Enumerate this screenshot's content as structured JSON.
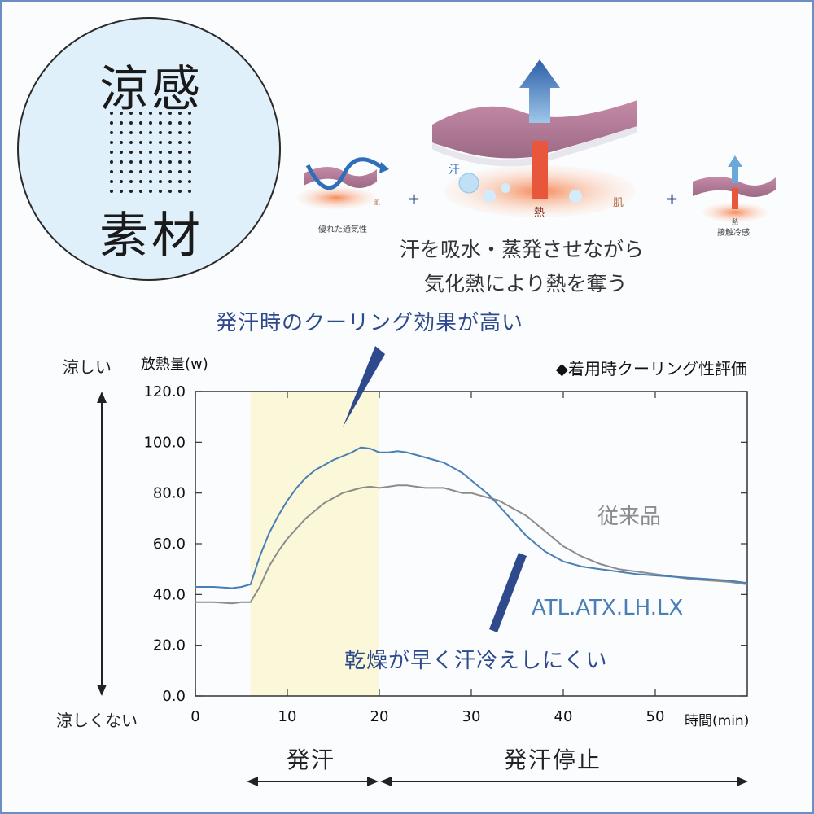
{
  "badge": {
    "line1": "涼感",
    "line2": "素材"
  },
  "illustration": {
    "left_caption": "優れた通気性",
    "center_sweat_label": "汗",
    "center_heat_label": "熱",
    "center_skin_label": "肌",
    "right_caption": "接触冷感",
    "right_heat_label": "熱",
    "left_skin_label": "肌"
  },
  "mechanism_text": {
    "line1": "汗を吸水・蒸発させながら",
    "line2": "気化熱により熱を奪う"
  },
  "highlight_note": "発汗時のクーリング効果が高い",
  "dry_note": "乾燥が早く汗冷えしにくい",
  "side_labels": {
    "top": "涼しい",
    "bottom": "涼しくない"
  },
  "phases": {
    "sweat": "発汗",
    "stop": "発汗停止"
  },
  "colors": {
    "new_product": "#4a7fb5",
    "conventional": "#8c8c8c",
    "shade": "#fbf8d9",
    "arrow_blue": "#2e4a8c"
  },
  "chart_data": {
    "type": "line",
    "title": "◆着用時クーリング性評価",
    "ylabel": "放熱量(w)",
    "xlabel": "時間(min)",
    "xlim": [
      0,
      60
    ],
    "ylim": [
      0,
      120
    ],
    "x_ticks": [
      0,
      10,
      20,
      30,
      40,
      50
    ],
    "y_ticks": [
      "0.0",
      "20.0",
      "40.0",
      "60.0",
      "80.0",
      "100.0",
      "120.0"
    ],
    "grid": false,
    "shaded_interval": [
      6,
      20
    ],
    "series": [
      {
        "name": "ATL.ATX.LH.LX",
        "x": [
          0,
          2,
          4,
          5,
          6,
          7,
          8,
          9,
          10,
          11,
          12,
          13,
          14,
          15,
          16,
          17,
          18,
          19,
          20,
          21,
          22,
          23,
          24,
          25,
          26,
          27,
          28,
          29,
          30,
          31,
          32,
          33,
          34,
          35,
          36,
          37,
          38,
          39,
          40,
          42,
          44,
          46,
          48,
          50,
          52,
          54,
          56,
          58,
          60
        ],
        "y": [
          43,
          43,
          42.5,
          43,
          44,
          55,
          64,
          71,
          77,
          82,
          86,
          89,
          91,
          93,
          94.5,
          96,
          98,
          97.5,
          96,
          96,
          96.5,
          96,
          95,
          94,
          93,
          92,
          90,
          88,
          85,
          82,
          79,
          75,
          71,
          67,
          63,
          60,
          57,
          55,
          53,
          51,
          50,
          49,
          48,
          47.5,
          47,
          46.5,
          46,
          45.5,
          44.5
        ]
      },
      {
        "name": "従来品",
        "x": [
          0,
          2,
          4,
          5,
          6,
          7,
          8,
          9,
          10,
          11,
          12,
          13,
          14,
          15,
          16,
          17,
          18,
          19,
          20,
          21,
          22,
          23,
          24,
          25,
          26,
          27,
          28,
          29,
          30,
          31,
          32,
          33,
          34,
          35,
          36,
          37,
          38,
          39,
          40,
          42,
          44,
          46,
          48,
          50,
          52,
          54,
          56,
          58,
          60
        ],
        "y": [
          37,
          37,
          36.5,
          37,
          37,
          43,
          51,
          57,
          62,
          66,
          70,
          73,
          76,
          78,
          80,
          81,
          82,
          82.5,
          82,
          82.5,
          83,
          83,
          82.5,
          82,
          82,
          82,
          81,
          80,
          80,
          79,
          78,
          77,
          75,
          73,
          71,
          68,
          65,
          62,
          59,
          55,
          52,
          50,
          49,
          48,
          47,
          46,
          45.5,
          45,
          44
        ]
      }
    ]
  }
}
